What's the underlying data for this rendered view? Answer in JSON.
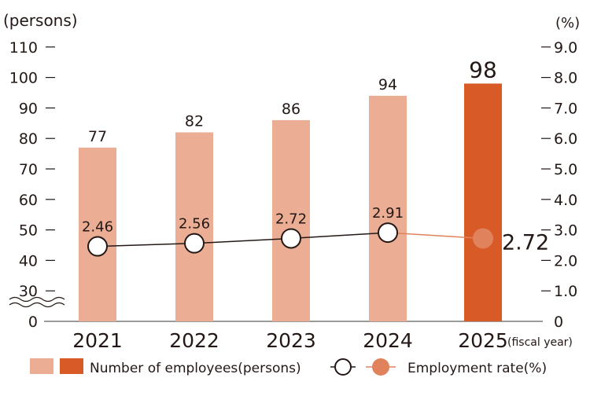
{
  "chart_data": {
    "type": "bar+line",
    "categories": [
      "2021",
      "2022",
      "2023",
      "2024",
      "2025"
    ],
    "x_suffix": "(fiscal year)",
    "series": [
      {
        "name": "Number of employees(persons)",
        "type": "bar",
        "axis": "left",
        "values": [
          77,
          82,
          86,
          94,
          98
        ],
        "colors": [
          "#ebae94",
          "#ebae94",
          "#ebae94",
          "#ebae94",
          "#d75a27"
        ]
      },
      {
        "name": "Employment rate(%)",
        "type": "line",
        "axis": "right",
        "values": [
          2.46,
          2.56,
          2.72,
          2.91,
          2.72
        ],
        "labels": [
          "2.46",
          "2.56",
          "2.72",
          "2.91",
          "2.72"
        ]
      }
    ],
    "left_axis": {
      "unit": "(persons)",
      "ticks": [
        "0",
        "30",
        "40",
        "50",
        "60",
        "70",
        "80",
        "90",
        "100",
        "110"
      ],
      "broken_between": [
        0,
        30
      ]
    },
    "right_axis": {
      "unit": "(%)",
      "ticks": [
        "0",
        "1.0",
        "2.0",
        "3.0",
        "4.0",
        "5.0",
        "6.0",
        "7.0",
        "8.0",
        "9.0"
      ],
      "range": [
        0,
        9
      ]
    },
    "legend": {
      "placement": "bottom",
      "bar_label": "Number of employees(persons)",
      "line_label": "Employment rate(%)"
    },
    "colors": {
      "bar_past": "#ebae94",
      "bar_current": "#d75a27",
      "line_past": "#231815",
      "line_forecast": "#e0835c",
      "marker_forecast": "#e0835c"
    }
  }
}
